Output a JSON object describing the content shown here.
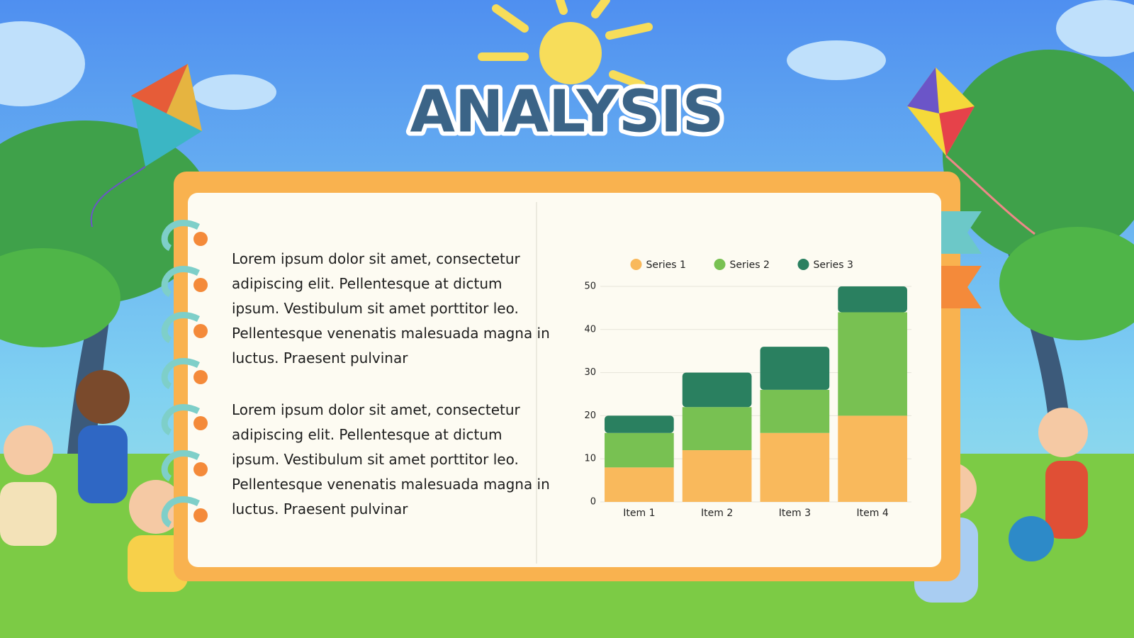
{
  "title": "ANALYSIS",
  "paragraphs": [
    "Lorem ipsum dolor sit amet, consectetur adipiscing elit. Pellentesque at dictum ipsum. Vestibulum sit amet porttitor leo. Pellentesque venenatis malesuada magna in luctus. Praesent pulvinar",
    "Lorem ipsum dolor sit amet, consectetur adipiscing elit. Pellentesque at dictum ipsum. Vestibulum sit amet porttitor leo. Pellentesque venenatis malesuada magna in luctus. Praesent pulvinar"
  ],
  "chart_data": {
    "type": "stacked-bar",
    "categories": [
      "Item 1",
      "Item 2",
      "Item 3",
      "Item 4"
    ],
    "series": [
      {
        "name": "Series 1",
        "color": "#f9b95c",
        "values": [
          8,
          12,
          16,
          20
        ]
      },
      {
        "name": "Series 2",
        "color": "#78c152",
        "values": [
          8,
          10,
          10,
          24
        ]
      },
      {
        "name": "Series 3",
        "color": "#2a8060",
        "values": [
          4,
          8,
          10,
          6
        ]
      }
    ],
    "ylim": [
      0,
      50
    ],
    "yticks": [
      0,
      10,
      20,
      30,
      40,
      50
    ],
    "grid": true,
    "legend": "top"
  }
}
